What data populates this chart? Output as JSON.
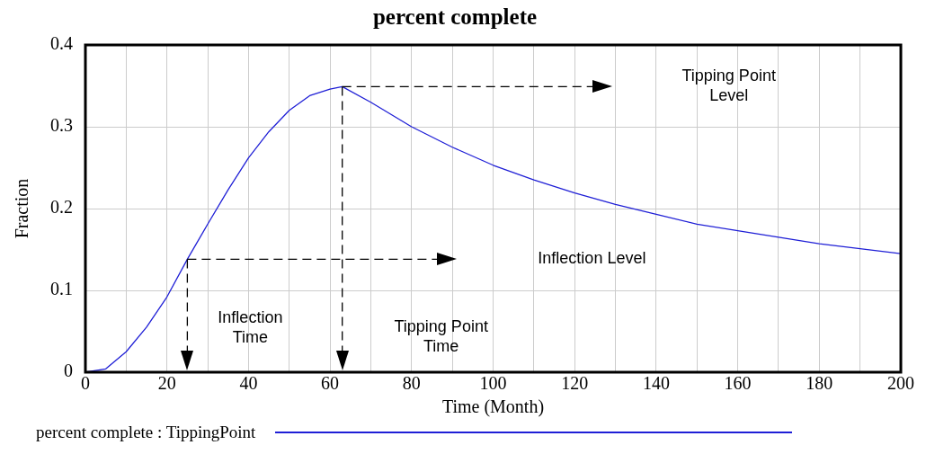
{
  "chart_data": {
    "type": "line",
    "title": "percent complete",
    "xlabel": "Time (Month)",
    "ylabel": "Fraction",
    "x": [
      0,
      5,
      10,
      15,
      20,
      25,
      30,
      35,
      40,
      45,
      50,
      55,
      60,
      63,
      70,
      80,
      90,
      100,
      110,
      120,
      130,
      140,
      150,
      160,
      170,
      180,
      190,
      200
    ],
    "series": [
      {
        "name": "percent complete : TippingPoint",
        "color": "#1f1fd6",
        "values": [
          0,
          0.004,
          0.025,
          0.055,
          0.092,
          0.138,
          0.181,
          0.223,
          0.262,
          0.294,
          0.32,
          0.338,
          0.346,
          0.349,
          0.33,
          0.3,
          0.275,
          0.253,
          0.235,
          0.219,
          0.205,
          0.193,
          0.181,
          0.173,
          0.165,
          0.157,
          0.151,
          0.145
        ]
      }
    ],
    "xlim": [
      0,
      200
    ],
    "ylim": [
      0,
      0.4
    ],
    "xticks": [
      0,
      {
        "value": 10,
        "label": null
      },
      20,
      {
        "value": 30,
        "label": null
      },
      40,
      {
        "value": 50,
        "label": null
      },
      60,
      {
        "value": 70,
        "label": null
      },
      80,
      {
        "value": 90,
        "label": null
      },
      100,
      {
        "value": 110,
        "label": null
      },
      120,
      {
        "value": 130,
        "label": null
      },
      140,
      {
        "value": 150,
        "label": null
      },
      160,
      {
        "value": 170,
        "label": null
      },
      180,
      {
        "value": 190,
        "label": null
      },
      200
    ],
    "yticks": [
      0,
      0.1,
      0.2,
      0.3,
      0.4
    ],
    "ref_lines": [
      {
        "axis": "y",
        "value": 0.349,
        "color": "#000000",
        "line_style": "dashed"
      },
      {
        "axis": "x",
        "value": 63,
        "color": "#000000",
        "line_style": "dashed"
      },
      {
        "axis": "y",
        "value": 0.138,
        "color": "#000000",
        "line_style": "dashed"
      },
      {
        "axis": "x",
        "value": 25,
        "color": "#000000",
        "line_style": "dashed"
      }
    ],
    "annotations": [
      "Tipping Point\nLevel",
      "Tipping Point\nTime",
      "Inflection Level",
      "Inflection\nTime"
    ],
    "grid": true,
    "legend": "bottom",
    "marker": "none",
    "line_style": "solid"
  }
}
